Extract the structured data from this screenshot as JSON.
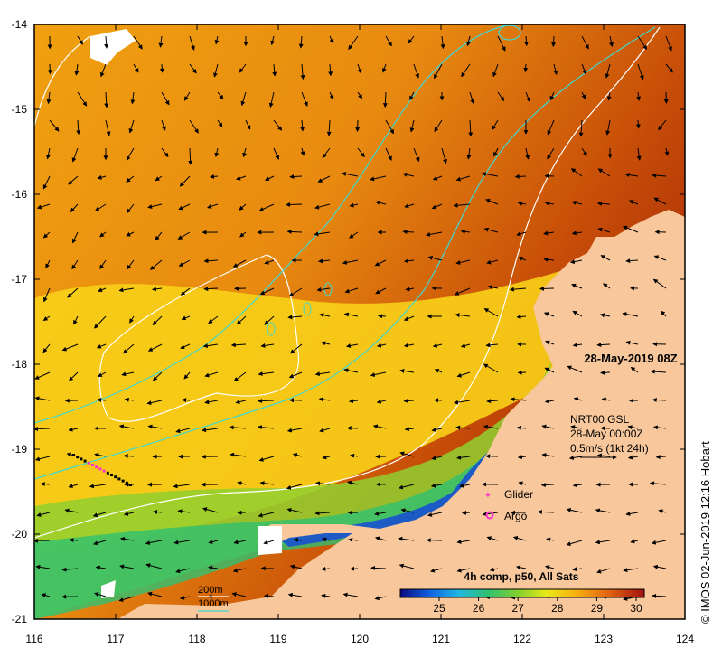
{
  "map": {
    "x_ticks": [
      "116",
      "117",
      "118",
      "119",
      "120",
      "121",
      "122",
      "123",
      "124"
    ],
    "y_ticks": [
      "-14",
      "-15",
      "-16",
      "-17",
      "-18",
      "-19",
      "-20",
      "-21"
    ],
    "date_label": "28-May-2019 08Z",
    "current_info": {
      "line1": "NRT00 GSL",
      "line2": "28-May 00:00Z",
      "line3": "0.5m/s (1kt 24h)"
    },
    "legend": {
      "glider": "Glider",
      "argo": "Argo",
      "isobath_200": "200m",
      "isobath_1000": "1000m"
    },
    "colorbar": {
      "title": "4h comp, p50, All Sats",
      "ticks": [
        "25",
        "26",
        "27",
        "28",
        "29",
        "30"
      ]
    },
    "credit": "© IMOS 02-Jun-2019 12:16 Hobart",
    "colors": {
      "land": "#f8c89c",
      "isobath_200": "#ffffff",
      "isobath_1000": "#40d8d0",
      "glider": "#ff33cc",
      "argo": "#ff33cc"
    }
  }
}
